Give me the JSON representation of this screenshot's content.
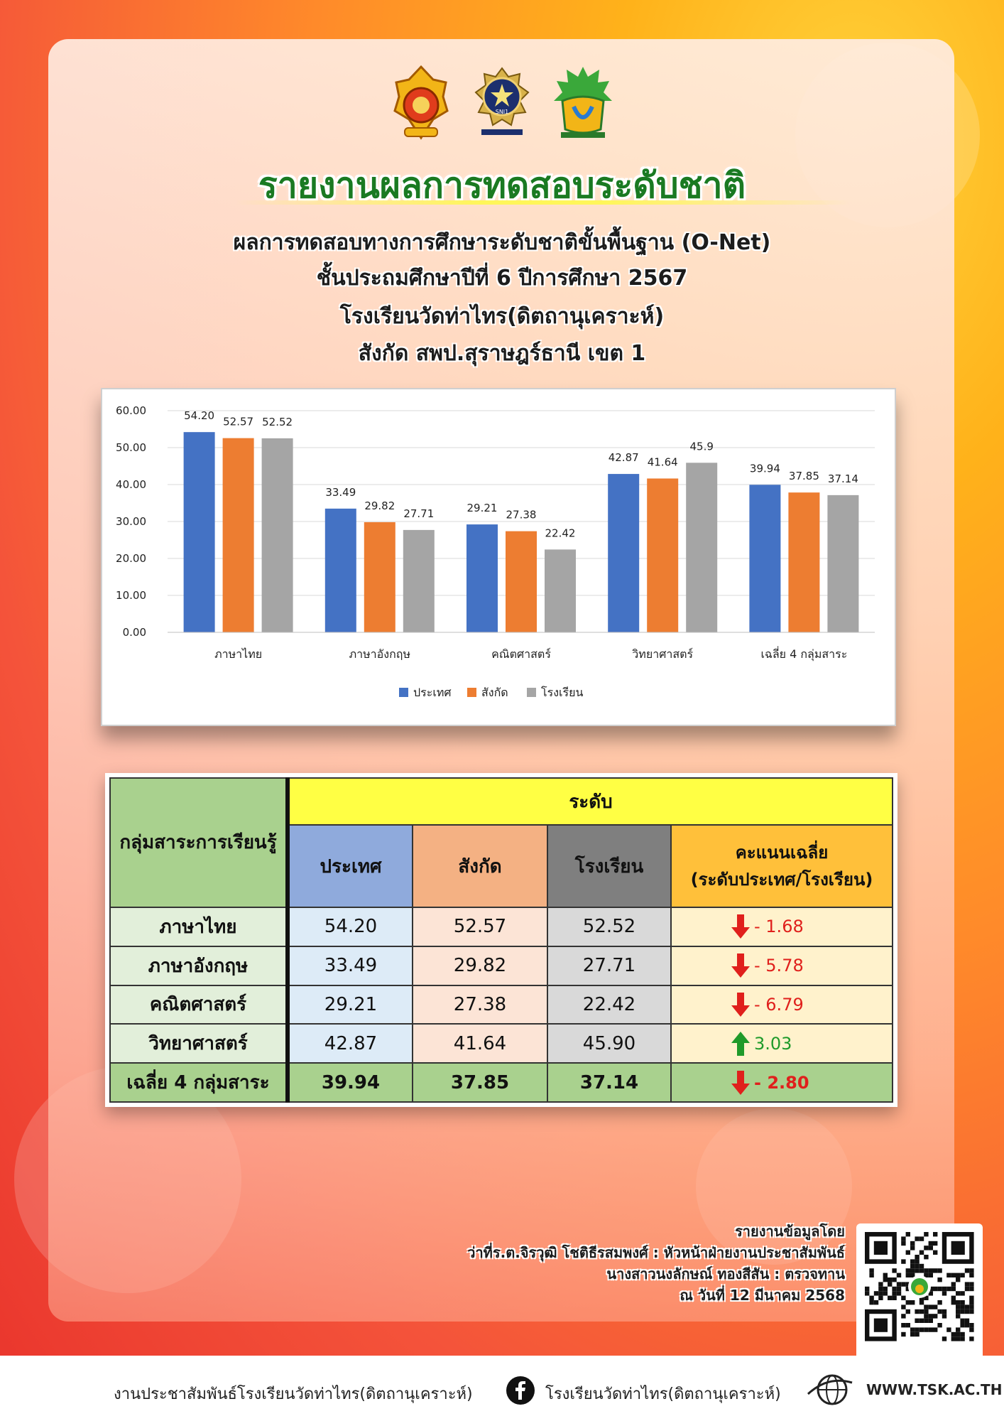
{
  "header": {
    "title": "รายงานผลการทดสอบระดับชาติ",
    "subtitle_lines": [
      "ผลการทดสอบทางการศึกษาระดับชาติขั้นพื้นฐาน (O-Net)",
      "ชั้นประถมศึกษาปีที่ 6 ปีการศึกษา 2567",
      "โรงเรียนวัดท่าไทร(ดิตถานุเคราะห์)",
      "สังกัด สพป.สุราษฎร์ธานี เขต 1"
    ],
    "logo_text": "SNI1"
  },
  "chart_data": {
    "type": "bar",
    "categories": [
      "ภาษาไทย",
      "ภาษาอังกฤษ",
      "คณิตศาสตร์",
      "วิทยาศาสตร์",
      "เฉลี่ย 4 กลุ่มสาระ"
    ],
    "series": [
      {
        "name": "ประเทศ",
        "values": [
          54.2,
          33.49,
          29.21,
          42.87,
          39.94
        ],
        "labels": [
          "54.20",
          "33.49",
          "29.21",
          "42.87",
          "39.94"
        ],
        "color": "#4472c4"
      },
      {
        "name": "สังกัด",
        "values": [
          52.57,
          29.82,
          27.38,
          41.64,
          37.85
        ],
        "labels": [
          "52.57",
          "29.82",
          "27.38",
          "41.64",
          "37.85"
        ],
        "color": "#ed7d31"
      },
      {
        "name": "โรงเรียน",
        "values": [
          52.52,
          27.71,
          22.42,
          45.9,
          37.14
        ],
        "labels": [
          "52.52",
          "27.71",
          "22.42",
          "45.9",
          "37.14"
        ],
        "color": "#a5a5a5"
      }
    ],
    "ylim": [
      0,
      60
    ],
    "yticks": [
      "0.00",
      "10.00",
      "20.00",
      "30.00",
      "40.00",
      "50.00",
      "60.00"
    ],
    "grid": true,
    "legend": "bottom"
  },
  "table": {
    "subject_header": "กลุ่มสาระการเรียนรู้",
    "level_header": "ระดับ",
    "col_country": "ประเทศ",
    "col_area": "สังกัด",
    "col_school": "โรงเรียน",
    "col_avg_line1": "คะแนนเฉลี่ย",
    "col_avg_line2": "(ระดับประเทศ/โรงเรียน)",
    "rows": [
      {
        "subject": "ภาษาไทย",
        "country": "54.20",
        "area": "52.57",
        "school": "52.52",
        "diff": "- 1.68",
        "trend": "down"
      },
      {
        "subject": "ภาษาอังกฤษ",
        "country": "33.49",
        "area": "29.82",
        "school": "27.71",
        "diff": "- 5.78",
        "trend": "down"
      },
      {
        "subject": "คณิตศาสตร์",
        "country": "29.21",
        "area": "27.38",
        "school": "22.42",
        "diff": "- 6.79",
        "trend": "down"
      },
      {
        "subject": "วิทยาศาสตร์",
        "country": "42.87",
        "area": "41.64",
        "school": "45.90",
        "diff": "3.03",
        "trend": "up"
      },
      {
        "subject": "เฉลี่ย 4 กลุ่มสาระ",
        "country": "39.94",
        "area": "37.85",
        "school": "37.14",
        "diff": "- 2.80",
        "trend": "down"
      }
    ]
  },
  "credits": {
    "line1": "รายงานข้อมูลโดย",
    "line2": "ว่าที่ร.ต.จิรวุฒิ โชติธีรสมพงศ์ : หัวหน้าฝ่ายงานประชาสัมพันธ์",
    "line3": "นางสาวนงลักษณ์ ทองสีสัน : ตรวจทาน",
    "line4": "ณ วันที่ 12  มีนาคม 2568"
  },
  "footer": {
    "unit": "งานประชาสัมพันธ์โรงเรียนวัดท่าไทร(ดิตถานุเคราะห์)",
    "facebook": "โรงเรียนวัดท่าไทร(ดิตถานุเคราะห์)",
    "website": "WWW.TSK.AC.TH"
  },
  "colors": {
    "title_green": "#1a7a22",
    "negative": "#e0201c",
    "positive": "#1f9a2a"
  }
}
